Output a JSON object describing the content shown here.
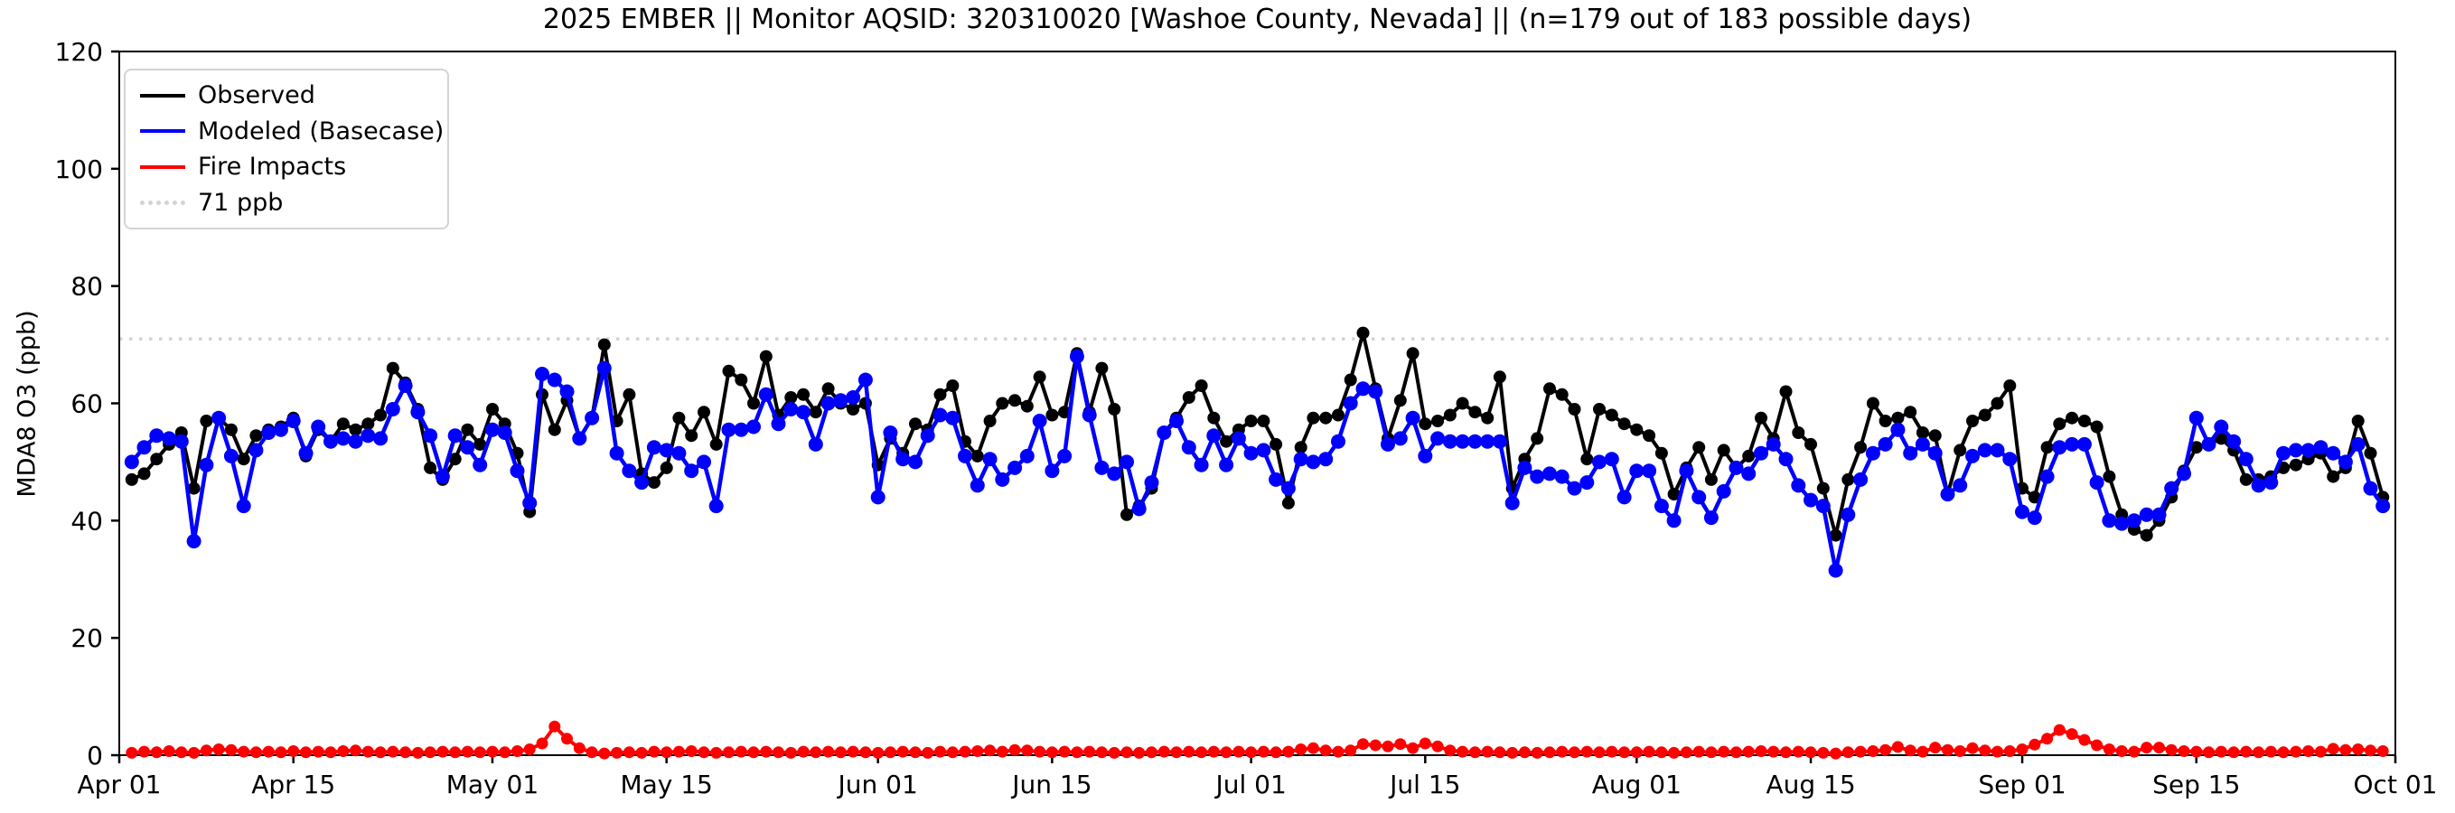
{
  "title": "2025 EMBER || Monitor AQSID: 320310020 [Washoe County, Nevada] || (n=179 out of 183 possible days)",
  "axes": {
    "ylabel": "MDA8 O3 (ppb)",
    "y_ticks": [
      0,
      20,
      40,
      60,
      80,
      100,
      120
    ],
    "x_ticks": [
      {
        "label": "Apr 01",
        "day": 0
      },
      {
        "label": "Apr 15",
        "day": 14
      },
      {
        "label": "May 01",
        "day": 30
      },
      {
        "label": "May 15",
        "day": 44
      },
      {
        "label": "Jun 01",
        "day": 61
      },
      {
        "label": "Jun 15",
        "day": 75
      },
      {
        "label": "Jul 01",
        "day": 91
      },
      {
        "label": "Jul 15",
        "day": 105
      },
      {
        "label": "Aug 01",
        "day": 122
      },
      {
        "label": "Aug 15",
        "day": 136
      },
      {
        "label": "Sep 01",
        "day": 153
      },
      {
        "label": "Sep 15",
        "day": 167
      },
      {
        "label": "Oct 01",
        "day": 183
      }
    ]
  },
  "legend": {
    "items": [
      {
        "label": "Observed",
        "color": "#000000",
        "style": "solid"
      },
      {
        "label": "Modeled (Basecase)",
        "color": "#0000ff",
        "style": "solid"
      },
      {
        "label": "Fire Impacts",
        "color": "#ff0000",
        "style": "solid"
      },
      {
        "label": "71 ppb",
        "color": "#d3d3d3",
        "style": "dotted"
      }
    ]
  },
  "chart_data": {
    "type": "line",
    "title": "2025 EMBER || Monitor AQSID: 320310020 [Washoe County, Nevada] || (n=179 out of 183 possible days)",
    "xlabel": "",
    "ylabel": "MDA8 O3 (ppb)",
    "ylim": [
      0,
      120
    ],
    "x_domain": "Apr 01 to Oct 01 (daily, 183 days)",
    "grid": false,
    "legend_position": "upper left",
    "threshold": {
      "label": "71 ppb",
      "value": 71,
      "color": "#d3d3d3",
      "style": "dotted"
    },
    "first_point_day_offset": 1,
    "first_point_date": "Apr 02",
    "last_point_date": "Sep 30",
    "series": [
      {
        "name": "Observed",
        "color": "#000000",
        "line_width": 4,
        "marker_radius": 7,
        "values": [
          47,
          48,
          50.5,
          53,
          55,
          45.5,
          57,
          57.5,
          55.5,
          50.5,
          54.5,
          55.5,
          56,
          57.5,
          51,
          55.5,
          53.5,
          56.5,
          55.5,
          56.5,
          58,
          66,
          63.5,
          59,
          49,
          47,
          50.5,
          55.5,
          53,
          59,
          56.5,
          51.5,
          41.5,
          61.5,
          55.5,
          60.5,
          54,
          57.5,
          70,
          57,
          61.5,
          48,
          46.5,
          49,
          57.5,
          54.5,
          58.5,
          53,
          65.5,
          64,
          60,
          68,
          58,
          61,
          61.5,
          58.5,
          62.5,
          60,
          59,
          60,
          49.5,
          54,
          51.5,
          56.5,
          55.5,
          61.5,
          63,
          53.5,
          51,
          57,
          60,
          60.5,
          59.5,
          64.5,
          58,
          58.5,
          68.5,
          58.5,
          66,
          59,
          41,
          42.5,
          45.5,
          55,
          57.5,
          61,
          63,
          57.5,
          53.5,
          55.5,
          57,
          57,
          53,
          43,
          52.5,
          57.5,
          57.5,
          58,
          64,
          72,
          62.5,
          54,
          60.5,
          68.5,
          56.5,
          57,
          58,
          60,
          58.5,
          57.5,
          64.5,
          45.5,
          50.5,
          54,
          62.5,
          61.5,
          59,
          50.5,
          59,
          58,
          56.5,
          55.5,
          54.5,
          51.5,
          44.5,
          49,
          52.5,
          47,
          52,
          49,
          51,
          57.5,
          54,
          62,
          55,
          53,
          45.5,
          37.5,
          47,
          52.5,
          60,
          57,
          57.5,
          58.5,
          55,
          54.5,
          44.5,
          52,
          57,
          58,
          60,
          63,
          45.5,
          44,
          52.5,
          56.5,
          57.5,
          57,
          56,
          47.5,
          41,
          38.5,
          37.5,
          40,
          44,
          48.5,
          52.5,
          53,
          54,
          52,
          47,
          47,
          47.5,
          49,
          49.5,
          50.5,
          51.5,
          47.5,
          49,
          57,
          51.5,
          44
        ]
      },
      {
        "name": "Modeled (Basecase)",
        "color": "#0000ff",
        "line_width": 4.5,
        "marker_radius": 8,
        "values": [
          50,
          52.5,
          54.5,
          54,
          53.5,
          36.5,
          49.5,
          57.5,
          51,
          42.5,
          52,
          55,
          55.5,
          57,
          51.5,
          56,
          53.5,
          54,
          53.5,
          54.5,
          54,
          59,
          63,
          58.5,
          54.5,
          47.5,
          54.5,
          52.5,
          49.5,
          55.5,
          55,
          48.5,
          43,
          65,
          64,
          62,
          54,
          57.5,
          66,
          51.5,
          48.5,
          46.5,
          52.5,
          52,
          51.5,
          48.5,
          50,
          42.5,
          55.5,
          55.5,
          56,
          61.5,
          56.5,
          59,
          58.5,
          53,
          60,
          60.5,
          61,
          64,
          44,
          55,
          50.5,
          50,
          54.5,
          58,
          57.5,
          51,
          46,
          50.5,
          47,
          49,
          51,
          57,
          48.5,
          51,
          68,
          58,
          49,
          48,
          50,
          42,
          46.5,
          55,
          57,
          52.5,
          49.5,
          54.5,
          49.5,
          54,
          51.5,
          52,
          47,
          45.5,
          50.5,
          50,
          50.5,
          53.5,
          60,
          62.5,
          62,
          53,
          54,
          57.5,
          51,
          54,
          53.5,
          53.5,
          53.5,
          53.5,
          53.5,
          43,
          49,
          47.5,
          48,
          47.5,
          45.5,
          46.5,
          50,
          50.5,
          44,
          48.5,
          48.5,
          42.5,
          40,
          48.5,
          44,
          40.5,
          45,
          49,
          48,
          51.5,
          53,
          50.5,
          46,
          43.5,
          42.5,
          31.5,
          41,
          47,
          51.5,
          53,
          55.5,
          51.5,
          53,
          51.5,
          44.5,
          46,
          51,
          52,
          52,
          50.5,
          41.5,
          40.5,
          47.5,
          52.5,
          53,
          53,
          46.5,
          40,
          39.5,
          40,
          41,
          41,
          45.5,
          48,
          57.5,
          53,
          56,
          53.5,
          50.5,
          46,
          46.5,
          51.5,
          52,
          52,
          52.5,
          51.5,
          50,
          53,
          45.5,
          42.5
        ]
      },
      {
        "name": "Fire Impacts",
        "color": "#ff0000",
        "line_width": 4,
        "marker_radius": 6.5,
        "values": [
          0.4,
          0.6,
          0.5,
          0.7,
          0.5,
          0.4,
          0.8,
          1,
          0.9,
          0.6,
          0.5,
          0.6,
          0.5,
          0.7,
          0.5,
          0.6,
          0.5,
          0.7,
          0.8,
          0.6,
          0.5,
          0.6,
          0.5,
          0.4,
          0.5,
          0.6,
          0.5,
          0.6,
          0.5,
          0.6,
          0.5,
          0.7,
          1,
          2,
          4.9,
          2.8,
          1.2,
          0.5,
          0.3,
          0.4,
          0.5,
          0.4,
          0.6,
          0.5,
          0.6,
          0.7,
          0.5,
          0.4,
          0.5,
          0.6,
          0.5,
          0.6,
          0.5,
          0.4,
          0.6,
          0.5,
          0.6,
          0.5,
          0.6,
          0.5,
          0.4,
          0.5,
          0.6,
          0.5,
          0.4,
          0.6,
          0.5,
          0.6,
          0.7,
          0.8,
          0.6,
          0.9,
          0.8,
          0.6,
          0.5,
          0.6,
          0.5,
          0.6,
          0.5,
          0.4,
          0.5,
          0.4,
          0.5,
          0.6,
          0.5,
          0.6,
          0.5,
          0.6,
          0.5,
          0.6,
          0.5,
          0.6,
          0.5,
          0.6,
          1,
          1.2,
          0.8,
          0.6,
          0.8,
          1.9,
          1.7,
          1.5,
          1.9,
          1.2,
          2,
          1.5,
          0.8,
          0.6,
          0.5,
          0.6,
          0.5,
          0.4,
          0.5,
          0.4,
          0.5,
          0.6,
          0.5,
          0.6,
          0.5,
          0.6,
          0.5,
          0.5,
          0.6,
          0.5,
          0.4,
          0.5,
          0.6,
          0.5,
          0.6,
          0.5,
          0.6,
          0.7,
          0.6,
          0.5,
          0.6,
          0.5,
          0.4,
          0.3,
          0.5,
          0.6,
          0.7,
          0.9,
          1.4,
          0.8,
          0.6,
          1.3,
          0.9,
          0.7,
          1.2,
          0.8,
          0.6,
          0.7,
          1,
          1.8,
          2.8,
          4.3,
          3.6,
          2.6,
          1.7,
          1,
          0.7,
          0.6,
          1.3,
          1.3,
          0.9,
          0.7,
          0.6,
          0.5,
          0.6,
          0.5,
          0.6,
          0.5,
          0.6,
          0.5,
          0.6,
          0.7,
          0.6,
          1.1,
          0.9,
          1,
          0.8,
          0.7
        ]
      }
    ]
  }
}
